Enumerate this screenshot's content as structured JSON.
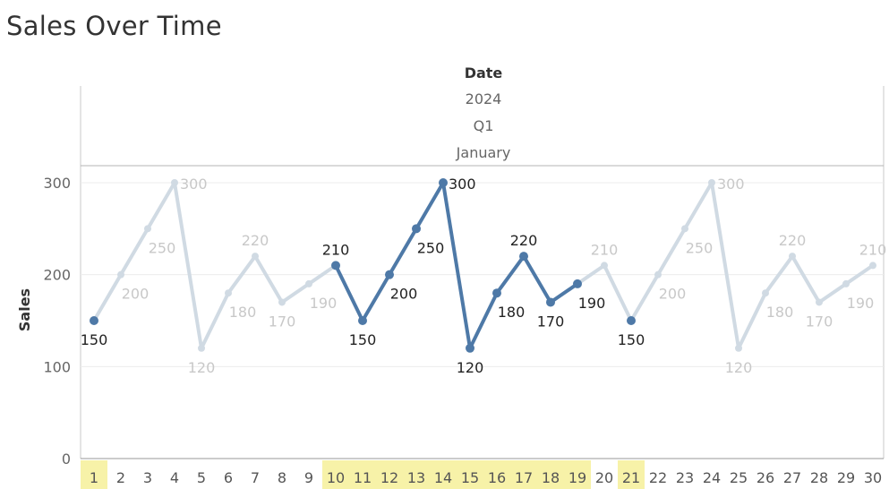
{
  "title": "Sales Over Time",
  "colors": {
    "highlight": "#4e79a7",
    "dimmed": "#d0dae3",
    "label_highlight": "#222222",
    "label_dimmed": "#c8c8c8",
    "tick_highlight_bg": "#f7f2a8"
  },
  "chart_data": {
    "type": "line",
    "title": "Sales Over Time",
    "header_levels": [
      "Date",
      "2024",
      "Q1",
      "January"
    ],
    "xlabel": "",
    "ylabel": "Sales",
    "categories": [
      "1",
      "2",
      "3",
      "4",
      "5",
      "6",
      "7",
      "8",
      "9",
      "10",
      "11",
      "12",
      "13",
      "14",
      "15",
      "16",
      "17",
      "18",
      "19",
      "20",
      "21",
      "22",
      "23",
      "24",
      "25",
      "26",
      "27",
      "28",
      "29",
      "30"
    ],
    "values": [
      150,
      200,
      250,
      300,
      120,
      180,
      220,
      170,
      190,
      210,
      150,
      200,
      250,
      300,
      120,
      180,
      220,
      170,
      190,
      210,
      150,
      200,
      250,
      300,
      120,
      180,
      220,
      170,
      190,
      210
    ],
    "highlighted": [
      "1",
      "10",
      "11",
      "12",
      "13",
      "14",
      "15",
      "16",
      "17",
      "18",
      "19",
      "21"
    ],
    "yticks": [
      0,
      100,
      200,
      300
    ],
    "ylim": [
      0,
      300
    ],
    "grid": true,
    "legend": "none"
  }
}
